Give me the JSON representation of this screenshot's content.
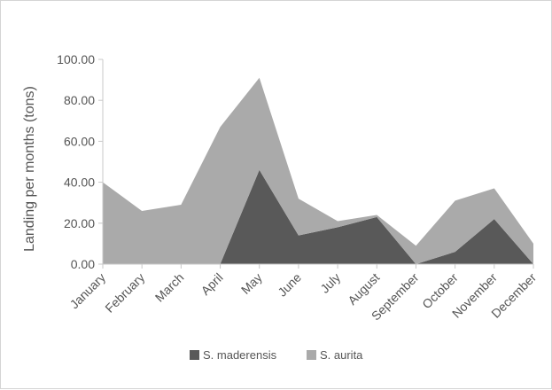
{
  "chart_data": {
    "type": "area",
    "stacked": true,
    "categories": [
      "January",
      "February",
      "March",
      "April",
      "May",
      "June",
      "July",
      "August",
      "September",
      "October",
      "November",
      "December"
    ],
    "series": [
      {
        "name": "S. maderensis",
        "color": "#595959",
        "values": [
          0,
          0,
          0,
          0,
          46,
          14,
          18,
          23,
          0,
          6,
          22,
          0
        ]
      },
      {
        "name": "S. aurita",
        "color": "#aaaaaa",
        "values": [
          40,
          26,
          29,
          67,
          45,
          18,
          3,
          1,
          9,
          25,
          15,
          10
        ]
      }
    ],
    "ylabel": "Landing per months (tons)",
    "ylim": [
      0,
      100
    ],
    "yticks": [
      "0.00",
      "20.00",
      "40.00",
      "60.00",
      "80.00",
      "100.00"
    ],
    "grid": false,
    "legend_position": "bottom"
  }
}
